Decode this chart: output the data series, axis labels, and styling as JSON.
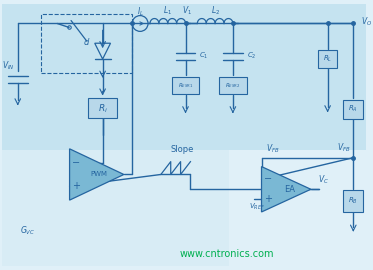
{
  "bg_outer": "#e0f0f8",
  "bg_top": "#c5e3f0",
  "bg_bottom_left": "#d8ecf5",
  "bg_bottom_right": "#eef8fc",
  "line_color": "#2565a0",
  "tri_fill": "#7ab8d4",
  "box_fill": "#b8d8ea",
  "watermark_color": "#00b050",
  "watermark": "www.cntronics.com"
}
